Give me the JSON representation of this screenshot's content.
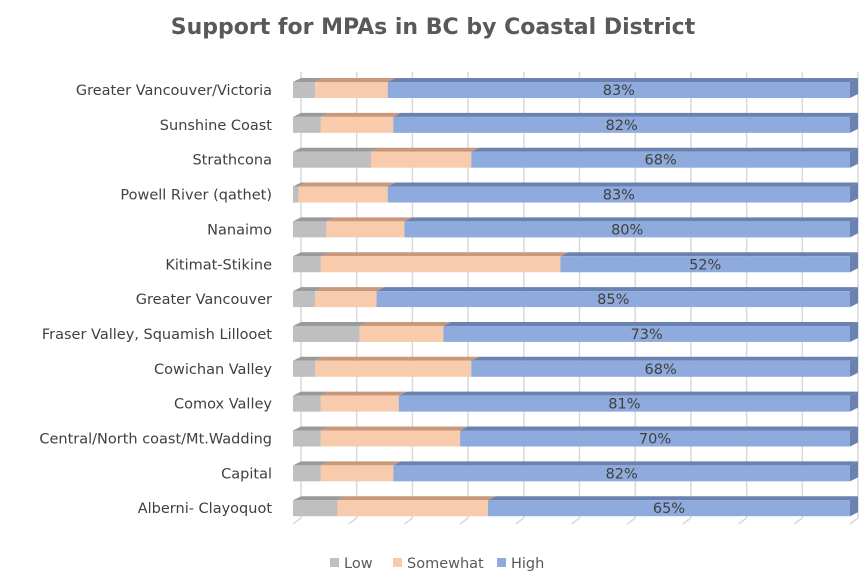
{
  "chart_data": {
    "type": "bar",
    "orientation": "horizontal",
    "stacked": "100%",
    "title": "Support for MPAs in BC by Coastal District",
    "categories": [
      "Greater Vancouver/Victoria",
      "Sunshine Coast",
      "Strathcona",
      "Powell River (qathet)",
      "Nanaimo",
      "Kitimat-Stikine",
      "Greater Vancouver",
      "Fraser Valley, Squamish Lillooet",
      "Cowichan Valley",
      "Comox Valley",
      "Central/North coast/Mt.Wadding",
      "Capital",
      "Alberni- Clayoquot"
    ],
    "series": [
      {
        "name": "Low",
        "color": "#bfbfbf",
        "values": [
          4,
          5,
          14,
          1,
          6,
          5,
          4,
          12,
          4,
          5,
          5,
          5,
          8
        ]
      },
      {
        "name": "Somewhat",
        "color": "#f8cbad",
        "values": [
          13,
          13,
          18,
          16,
          14,
          43,
          11,
          15,
          28,
          14,
          25,
          13,
          27
        ]
      },
      {
        "name": "High",
        "color": "#8faadc",
        "values": [
          83,
          82,
          68,
          83,
          80,
          52,
          85,
          73,
          68,
          81,
          70,
          82,
          65
        ],
        "labels": [
          "83%",
          "82%",
          "68%",
          "83%",
          "80%",
          "52%",
          "85%",
          "73%",
          "68%",
          "81%",
          "70%",
          "82%",
          "65%"
        ]
      }
    ],
    "xlim": [
      0,
      100
    ],
    "grid": true,
    "legend": "bottom"
  }
}
